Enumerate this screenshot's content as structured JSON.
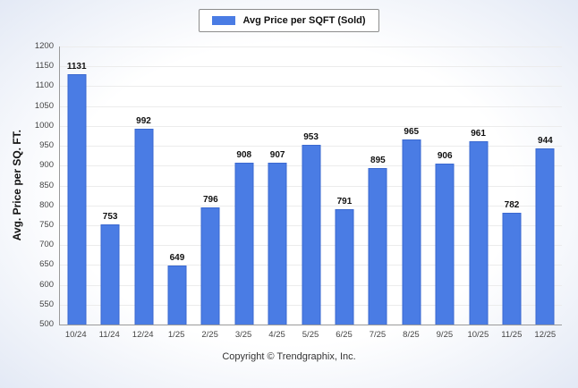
{
  "legend": {
    "label": "Avg Price per SQFT (Sold)",
    "swatch_color": "#4a7ce4"
  },
  "footer": {
    "copyright": "Copyright © Trendgraphix, Inc."
  },
  "chart_data": {
    "type": "bar",
    "title": "",
    "series_name": "Avg Price per SQFT (Sold)",
    "categories": [
      "10/24",
      "11/24",
      "12/24",
      "1/25",
      "2/25",
      "3/25",
      "4/25",
      "5/25",
      "6/25",
      "7/25",
      "8/25",
      "9/25",
      "10/25",
      "11/25",
      "12/25"
    ],
    "values": [
      1131,
      753,
      992,
      649,
      796,
      908,
      907,
      953,
      791,
      895,
      965,
      906,
      961,
      782,
      944
    ],
    "xlabel": "",
    "ylabel": "Avg. Price per SQ. FT.",
    "ylim": [
      500,
      1200
    ],
    "ytick_step": 50,
    "grid": true,
    "legend_position": "top",
    "bar_color": "#4a7ce4"
  }
}
